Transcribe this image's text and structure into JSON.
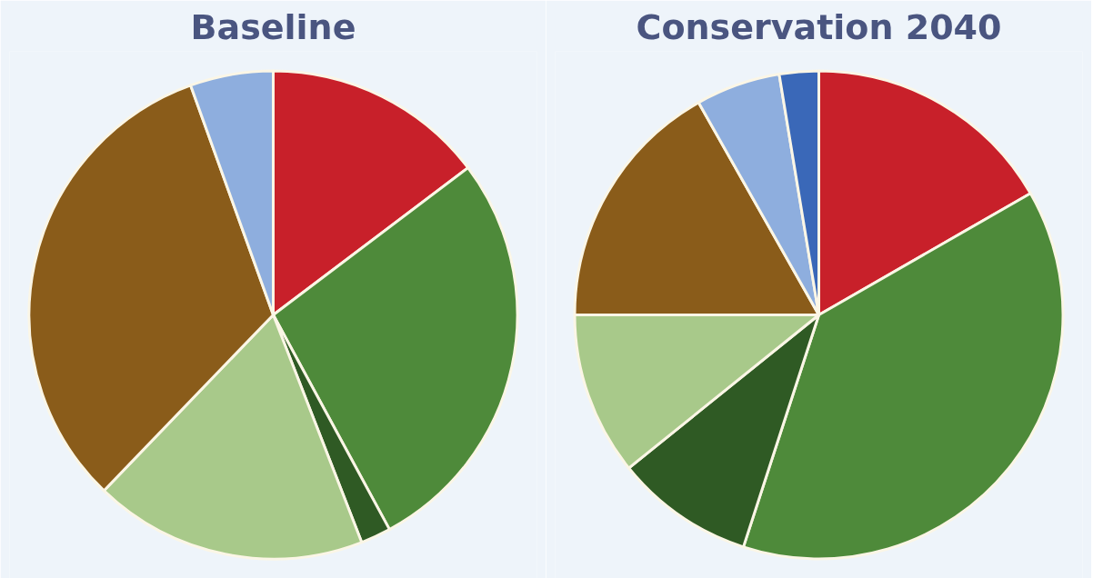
{
  "chart_data": [
    {
      "type": "pie",
      "title": "Baseline",
      "categories": [
        null,
        null,
        null,
        null,
        null,
        null
      ],
      "values": [
        14.7,
        27.4,
        2,
        18.1,
        32.3,
        5.5
      ],
      "colors": [
        "#c8202a",
        "#4e8a3a",
        "#2f5a24",
        "#a8c98a",
        "#8a5c1a",
        "#8eaede"
      ]
    },
    {
      "type": "pie",
      "title": "Conservation 2040",
      "categories": [
        null,
        null,
        null,
        null,
        null,
        null,
        null
      ],
      "values": [
        16.7,
        38.3,
        9.2,
        10.8,
        16.8,
        5.6,
        2.6
      ],
      "colors": [
        "#c8202a",
        "#4e8a3a",
        "#2f5a24",
        "#a8c98a",
        "#8a5c1a",
        "#8eaede",
        "#3a68b8"
      ]
    }
  ]
}
